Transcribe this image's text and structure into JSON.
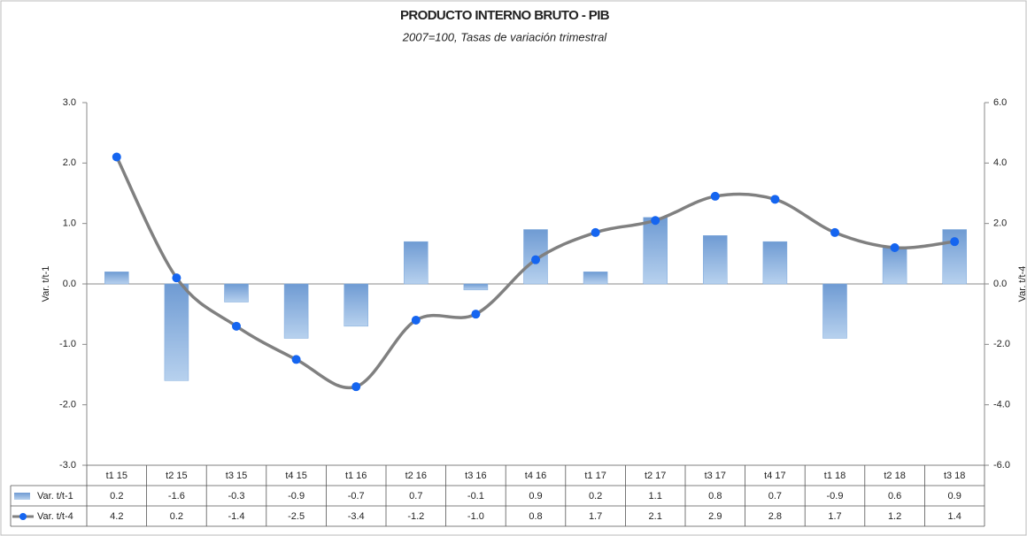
{
  "chart_data": {
    "type": "bar-line",
    "title": "PRODUCTO INTERNO BRUTO - PIB",
    "subtitle": "2007=100, Tasas de variación trimestral",
    "y_label": "Var. t/t-1",
    "y2_label": "Var. t/t-4",
    "categories": [
      "t1 15",
      "t2 15",
      "t3 15",
      "t4 15",
      "t1 16",
      "t2 16",
      "t3 16",
      "t4 16",
      "t1 17",
      "t2 17",
      "t3 17",
      "t4 17",
      "t1 18",
      "t2 18",
      "t3 18"
    ],
    "series": [
      {
        "name": "Var. t/t-1",
        "type": "bar",
        "color": "#7ea9dc",
        "values": [
          0.2,
          -1.6,
          -0.3,
          -0.9,
          -0.7,
          0.7,
          -0.1,
          0.9,
          0.2,
          1.1,
          0.8,
          0.7,
          -0.9,
          0.6,
          0.9
        ]
      },
      {
        "name": "Var. t/t-4",
        "type": "line",
        "axis": "y2",
        "color": "#808080",
        "marker_color": "#1565f0",
        "values": [
          4.2,
          0.2,
          -1.4,
          -2.5,
          -3.4,
          -1.2,
          -1.0,
          0.8,
          1.7,
          2.1,
          2.9,
          2.8,
          1.7,
          1.2,
          1.4
        ],
        "value_labels": [
          "4.2",
          "0.2",
          "-1.4",
          "-2.5",
          "-3.4",
          "-1.2",
          "-1.0",
          "0.8",
          "1.7",
          "2.1",
          "2.9",
          "2.8",
          "1.7",
          "1.2",
          "1.4"
        ]
      }
    ],
    "ylim": [
      -3,
      3
    ],
    "yticks": [
      {
        "value": -3,
        "label": "-3.0"
      },
      {
        "value": -2,
        "label": "-2.0"
      },
      {
        "value": -1,
        "label": "-1.0"
      },
      {
        "value": 0,
        "label": "0.0"
      },
      {
        "value": 1,
        "label": "1.0"
      },
      {
        "value": 2,
        "label": "2.0"
      },
      {
        "value": 3,
        "label": "3.0"
      }
    ],
    "y2lim": [
      -6,
      6
    ],
    "y2ticks": [
      {
        "value": -6,
        "label": "-6.0"
      },
      {
        "value": -4,
        "label": "-4.0"
      },
      {
        "value": -2,
        "label": "-2.0"
      },
      {
        "value": 0,
        "label": "0.0"
      },
      {
        "value": 2,
        "label": "2.0"
      },
      {
        "value": 4,
        "label": "4.0"
      },
      {
        "value": 6,
        "label": "6.0"
      }
    ],
    "grid": false
  }
}
